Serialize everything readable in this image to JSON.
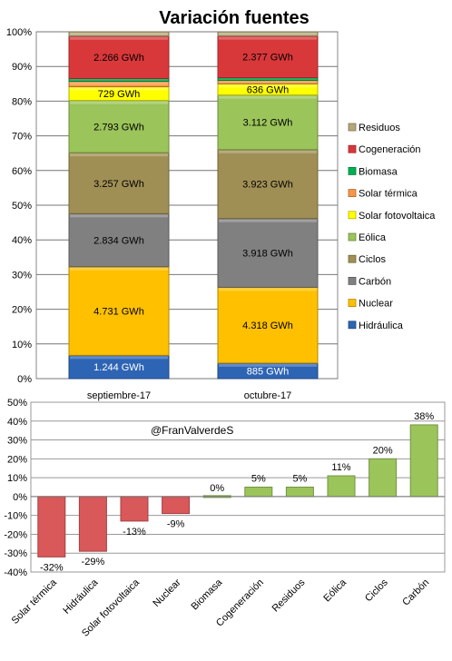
{
  "chart_data": [
    {
      "type": "bar",
      "stacked": true,
      "normalized": true,
      "title": "Variación fuentes",
      "categories": [
        "septiembre-17",
        "octubre-17"
      ],
      "ylim": [
        0,
        100
      ],
      "yticks": [
        "0%",
        "10%",
        "20%",
        "30%",
        "40%",
        "50%",
        "60%",
        "70%",
        "80%",
        "90%",
        "100%"
      ],
      "grid": true,
      "legend_position": "right",
      "series": [
        {
          "name": "Hidráulica",
          "color": "#2E64B4",
          "values": [
            1244,
            885
          ],
          "labels": [
            "1.244 GWh",
            "885 GWh"
          ]
        },
        {
          "name": "Nuclear",
          "color": "#FFC000",
          "values": [
            4731,
            4318
          ],
          "labels": [
            "4.731 GWh",
            "4.318 GWh"
          ]
        },
        {
          "name": "Carbón",
          "color": "#808080",
          "values": [
            2834,
            3918
          ],
          "labels": [
            "2.834 GWh",
            "3.918 GWh"
          ]
        },
        {
          "name": "Ciclos",
          "color": "#A08F55",
          "values": [
            3257,
            3923
          ],
          "labels": [
            "3.257 GWh",
            "3.923 GWh"
          ]
        },
        {
          "name": "Eólica",
          "color": "#9BC45A",
          "values": [
            2793,
            3112
          ],
          "labels": [
            "2.793 GWh",
            "3.112 GWh"
          ]
        },
        {
          "name": "Solar fotovoltaica",
          "color": "#FFFF00",
          "values": [
            729,
            636
          ],
          "labels": [
            "729 GWh",
            "636 GWh"
          ]
        },
        {
          "name": "Solar térmica",
          "color": "#F79646",
          "values": [
            290,
            197
          ],
          "labels": [
            "",
            ""
          ]
        },
        {
          "name": "Biomasa",
          "color": "#00B050",
          "values": [
            150,
            150
          ],
          "labels": [
            "",
            ""
          ]
        },
        {
          "name": "Cogeneración",
          "color": "#D9383A",
          "values": [
            2266,
            2377
          ],
          "labels": [
            "2.266 GWh",
            "2.377 GWh"
          ]
        },
        {
          "name": "Residuos",
          "color": "#B5A77A",
          "values": [
            230,
            240
          ],
          "labels": [
            "",
            ""
          ]
        }
      ]
    },
    {
      "type": "bar",
      "title": "",
      "annotation": "@FranValverdeS",
      "categories": [
        "Solar térmica",
        "Hidráulica",
        "Solar fotovoltaica",
        "Nuclear",
        "Biomasa",
        "Cogeneración",
        "Residuos",
        "Eólica",
        "Ciclos",
        "Carbón"
      ],
      "values": [
        -32,
        -29,
        -13,
        -9,
        0,
        5,
        5,
        11,
        20,
        38
      ],
      "labels": [
        "-32%",
        "-29%",
        "-13%",
        "-9%",
        "0%",
        "5%",
        "5%",
        "11%",
        "20%",
        "38%"
      ],
      "ylim": [
        -40,
        50
      ],
      "yticks": [
        "-40%",
        "-30%",
        "-20%",
        "-10%",
        "0%",
        "10%",
        "20%",
        "30%",
        "40%",
        "50%"
      ],
      "colors": {
        "negative": "#D9585A",
        "positive": "#9BC45A"
      },
      "grid": true
    }
  ]
}
